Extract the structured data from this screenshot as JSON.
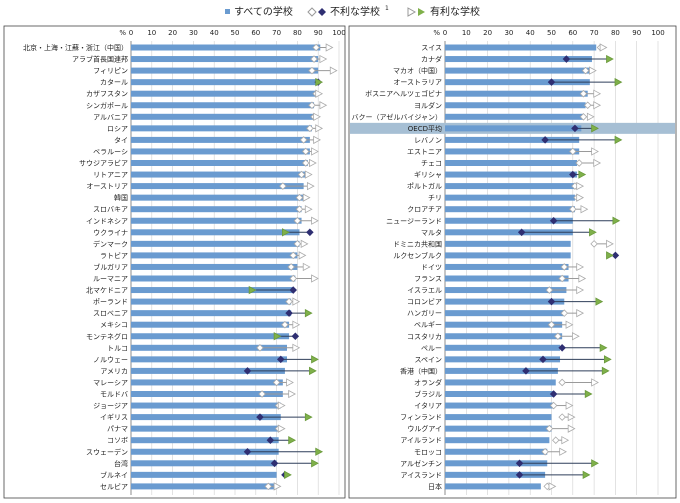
{
  "legend": {
    "all": "すべての学校",
    "disadv": "不利な学校",
    "disadv_sup": "1",
    "adv": "有利な学校"
  },
  "colors": {
    "bar": "#6a9bd0",
    "bar_dark": "#4a7cb5",
    "disadv": "#2f2f72",
    "adv": "#6a9a3c",
    "adv_fill": "#7fb04a",
    "hollow": "#aaaaaa",
    "oecd_band": "#a6bfd4"
  },
  "axis": {
    "unit": "%",
    "ticks": [
      "0",
      "10",
      "20",
      "30",
      "40",
      "50",
      "60",
      "70",
      "80",
      "90",
      "100"
    ]
  },
  "chart_data": [
    {
      "type": "bar",
      "title": "",
      "xlabel": "%",
      "ylabel": "",
      "xlim": [
        0,
        100
      ],
      "grid": true,
      "series_names": [
        "すべての学校",
        "不利な学校",
        "有利な学校"
      ],
      "categories": [
        "北京・上海・江蘇・浙江（中国）",
        "アラブ首長国連邦",
        "フィリピン",
        "カタール",
        "カザフスタン",
        "シンガポール",
        "アルバニア",
        "ロシア",
        "タイ",
        "ベラルーシ",
        "サウジアラビア",
        "リトアニア",
        "オーストリア",
        "韓国",
        "スロバキア",
        "インドネシア",
        "ウクライナ",
        "デンマーク",
        "ラトビア",
        "ブルガリア",
        "ルーマニア",
        "北マケドニア",
        "ポーランド",
        "スロベニア",
        "メキシコ",
        "モンテネグロ",
        "トルコ",
        "ノルウェー",
        "アメリカ",
        "マレーシア",
        "モルドバ",
        "ジョージア",
        "イギリス",
        "パナマ",
        "コソボ",
        "スウェーデン",
        "台湾",
        "ブルネイ",
        "セルビア"
      ],
      "all": [
        91,
        90,
        90,
        89,
        89,
        88,
        88,
        87,
        86,
        86,
        85,
        84,
        83,
        83,
        82,
        82,
        81,
        81,
        80,
        80,
        79,
        78,
        77,
        77,
        76,
        76,
        75,
        75,
        74,
        73,
        73,
        72,
        72,
        71,
        71,
        71,
        70,
        70,
        69
      ],
      "disadv": [
        89,
        88,
        87,
        90,
        89,
        87,
        88,
        86,
        83,
        84,
        84,
        82,
        73,
        81,
        81,
        80,
        86,
        80,
        78,
        77,
        78,
        78,
        76,
        76,
        74,
        79,
        62,
        72,
        56,
        70,
        63,
        71,
        62,
        71,
        67,
        56,
        69,
        74,
        66
      ],
      "adv": [
        95,
        92,
        97,
        90,
        90,
        92,
        89,
        90,
        89,
        88,
        87,
        85,
        86,
        84,
        85,
        88,
        74,
        83,
        82,
        84,
        88,
        58,
        79,
        85,
        79,
        70,
        79,
        88,
        87,
        76,
        77,
        72,
        85,
        72,
        77,
        90,
        88,
        75,
        70
      ],
      "disadv_hollow": [
        true,
        true,
        true,
        false,
        true,
        true,
        true,
        true,
        true,
        true,
        true,
        true,
        true,
        true,
        true,
        true,
        false,
        true,
        true,
        true,
        true,
        false,
        true,
        false,
        true,
        false,
        true,
        false,
        false,
        true,
        true,
        true,
        false,
        true,
        false,
        false,
        false,
        false,
        true
      ],
      "adv_hollow": [
        true,
        true,
        true,
        false,
        true,
        true,
        true,
        true,
        true,
        true,
        true,
        true,
        true,
        true,
        true,
        true,
        false,
        true,
        true,
        true,
        true,
        false,
        true,
        false,
        true,
        false,
        true,
        false,
        false,
        true,
        true,
        true,
        false,
        true,
        false,
        false,
        false,
        false,
        true
      ]
    },
    {
      "type": "bar",
      "title": "",
      "xlabel": "%",
      "ylabel": "",
      "xlim": [
        0,
        100
      ],
      "grid": true,
      "series_names": [
        "すべての学校",
        "不利な学校",
        "有利な学校"
      ],
      "categories": [
        "スイス",
        "カナダ",
        "マカオ（中国）",
        "オーストラリア",
        "ボスニアヘルツェゴビナ",
        "ヨルダン",
        "バクー（アゼルバイジャン）",
        "OECD平均",
        "レバノン",
        "エストニア",
        "チェコ",
        "ギリシャ",
        "ポルトガル",
        "チリ",
        "クロアチア",
        "ニュージーランド",
        "マルタ",
        "ドミニカ共和国",
        "ルクセンブルク",
        "ドイツ",
        "フランス",
        "イスラエル",
        "コロンビア",
        "ハンガリー",
        "ベルギー",
        "コスタリカ",
        "ペルー",
        "スペイン",
        "香港（中国）",
        "オランダ",
        "ブラジル",
        "イタリア",
        "フィンランド",
        "ウルグアイ",
        "アイルランド",
        "モロッコ",
        "アルゼンチン",
        "アイスランド",
        "日本"
      ],
      "all": [
        71,
        69,
        68,
        68,
        67,
        66,
        65,
        64,
        63,
        63,
        62,
        62,
        61,
        61,
        61,
        60,
        60,
        59,
        59,
        58,
        58,
        57,
        56,
        56,
        55,
        55,
        54,
        54,
        53,
        52,
        51,
        51,
        50,
        50,
        49,
        48,
        48,
        47,
        45
      ],
      "disadv": [
        73,
        57,
        66,
        50,
        65,
        67,
        65,
        61,
        47,
        60,
        63,
        60,
        61,
        62,
        60,
        51,
        36,
        70,
        80,
        56,
        55,
        49,
        50,
        56,
        50,
        53,
        55,
        46,
        38,
        55,
        51,
        51,
        55,
        49,
        52,
        47,
        35,
        35,
        48
      ],
      "adv": [
        74,
        77,
        69,
        81,
        71,
        71,
        68,
        70,
        81,
        70,
        71,
        64,
        63,
        63,
        65,
        80,
        69,
        77,
        77,
        63,
        64,
        63,
        72,
        63,
        58,
        61,
        74,
        76,
        75,
        70,
        67,
        58,
        59,
        59,
        56,
        55,
        70,
        66,
        50
      ],
      "disadv_hollow": [
        true,
        false,
        true,
        false,
        true,
        true,
        true,
        false,
        false,
        true,
        true,
        false,
        true,
        true,
        true,
        false,
        false,
        true,
        false,
        true,
        true,
        true,
        false,
        true,
        true,
        true,
        false,
        false,
        false,
        true,
        false,
        true,
        true,
        true,
        true,
        true,
        false,
        false,
        true
      ],
      "adv_hollow": [
        true,
        false,
        true,
        false,
        true,
        true,
        true,
        false,
        false,
        true,
        true,
        false,
        true,
        true,
        true,
        false,
        false,
        true,
        false,
        true,
        true,
        true,
        false,
        true,
        true,
        true,
        false,
        false,
        false,
        true,
        false,
        true,
        true,
        true,
        true,
        true,
        false,
        false,
        true
      ]
    }
  ]
}
